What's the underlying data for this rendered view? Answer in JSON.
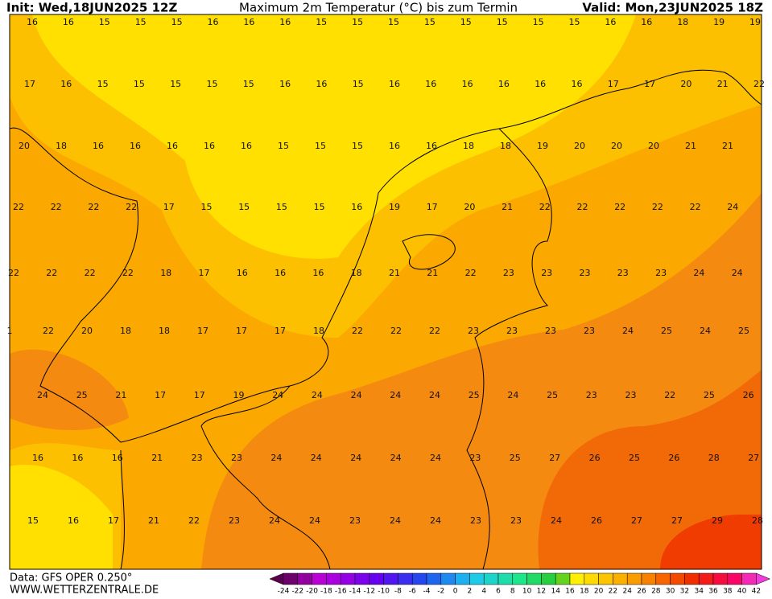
{
  "header": {
    "init": "Init: Wed,18JUN2025 12Z",
    "title": "Maximum 2m Temperatur (°C) bis zum Termin",
    "valid": "Valid: Mon,23JUN2025 18Z"
  },
  "footer": {
    "data": "Data: GFS OPER 0.250°",
    "site": "WWW.WETTERZENTRALE.DE"
  },
  "colorbar": {
    "ticks": [
      -24,
      -22,
      -20,
      -18,
      -16,
      -14,
      -12,
      -10,
      -8,
      -6,
      -4,
      -2,
      0,
      2,
      4,
      6,
      8,
      10,
      12,
      14,
      16,
      18,
      20,
      22,
      24,
      26,
      28,
      30,
      32,
      34,
      36,
      38,
      40,
      42
    ]
  },
  "map": {
    "rows": [
      [
        16,
        16,
        15,
        15,
        15,
        16,
        16,
        16,
        15,
        15,
        15,
        15,
        15,
        15,
        15,
        15,
        16,
        16,
        18,
        19,
        19
      ],
      [
        17,
        16,
        15,
        15,
        15,
        15,
        15,
        16,
        16,
        15,
        16,
        16,
        16,
        16,
        16,
        16,
        17,
        17,
        20,
        21,
        22
      ],
      [
        20,
        18,
        16,
        16,
        16,
        16,
        16,
        15,
        15,
        15,
        16,
        16,
        18,
        18,
        19,
        20,
        20,
        20,
        21,
        21
      ],
      [
        22,
        22,
        22,
        22,
        17,
        15,
        15,
        15,
        15,
        16,
        19,
        17,
        20,
        21,
        22,
        22,
        22,
        22,
        22,
        24
      ],
      [
        22,
        22,
        22,
        22,
        18,
        17,
        16,
        16,
        16,
        18,
        21,
        21,
        22,
        23,
        23,
        23,
        23,
        23,
        24,
        24
      ],
      [
        1,
        22,
        20,
        18,
        18,
        17,
        17,
        17,
        18,
        22,
        22,
        22,
        23,
        23,
        23,
        23,
        24,
        25,
        24,
        25
      ],
      [
        24,
        25,
        21,
        17,
        17,
        19,
        24,
        24,
        24,
        24,
        24,
        25,
        24,
        25,
        23,
        23,
        22,
        25,
        26
      ],
      [
        16,
        16,
        16,
        21,
        23,
        23,
        24,
        24,
        24,
        24,
        24,
        23,
        25,
        27,
        26,
        25,
        26,
        28,
        27
      ],
      [
        15,
        16,
        17,
        21,
        22,
        23,
        24,
        24,
        23,
        24,
        24,
        23,
        23,
        24,
        26,
        27,
        27,
        29,
        28
      ]
    ]
  }
}
